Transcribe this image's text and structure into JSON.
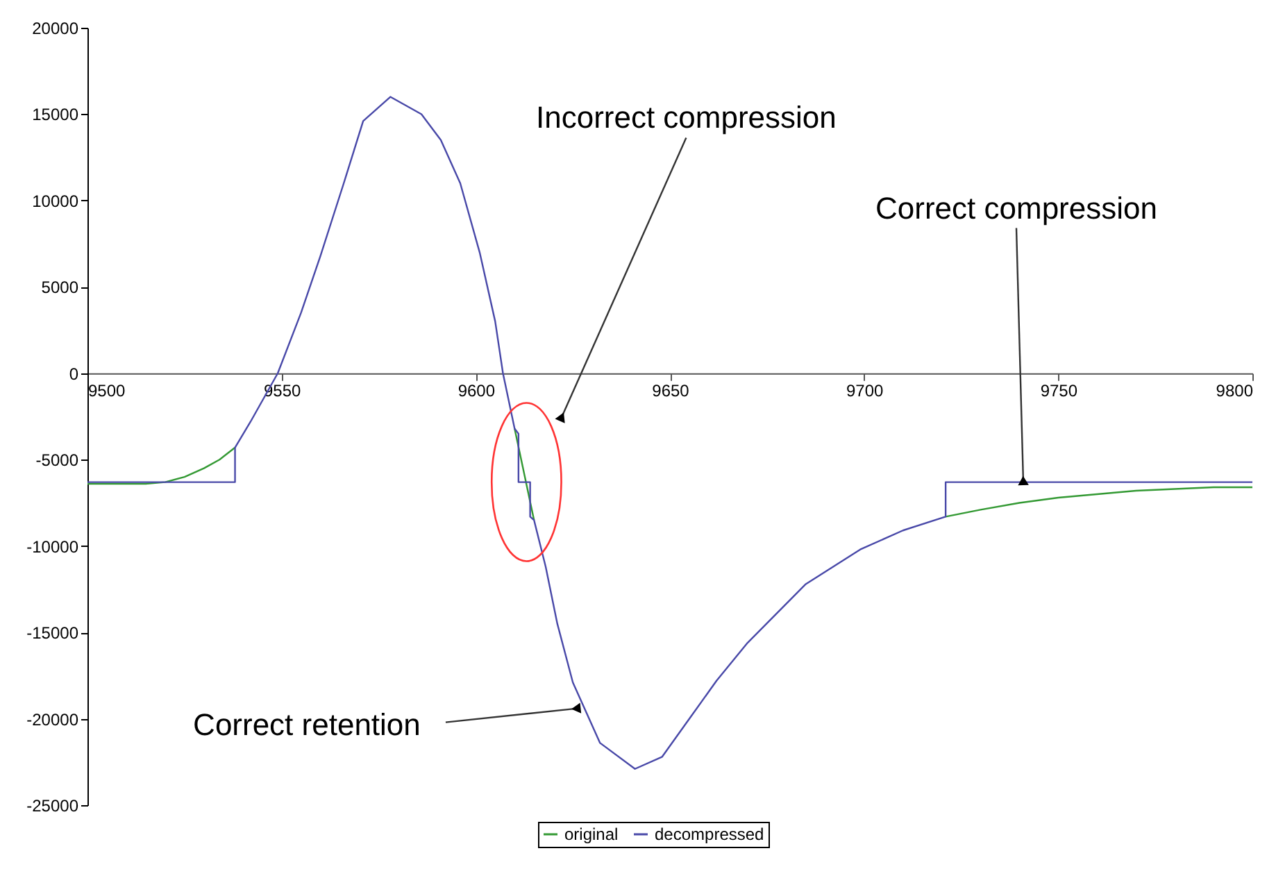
{
  "chart_data": {
    "type": "line",
    "xlim": [
      9500,
      9800
    ],
    "xticks": [
      9500,
      9550,
      9600,
      9650,
      9700,
      9750,
      9800
    ],
    "ylim": [
      -25000,
      20000
    ],
    "yticks": [
      -25000,
      -20000,
      -15000,
      -10000,
      -5000,
      0,
      5000,
      10000,
      15000,
      20000
    ],
    "grid": false,
    "legend": "bottom",
    "line_style": "solid",
    "marker": "none",
    "series": [
      {
        "name": "original",
        "color": "#339933",
        "x": [
          9500,
          9505,
          9510,
          9515,
          9520,
          9525,
          9530,
          9534,
          9538,
          9574,
          9610,
          9615,
          9668,
          9721,
          9730,
          9740,
          9750,
          9760,
          9770,
          9780,
          9790,
          9800
        ],
        "values": [
          -6400,
          -6400,
          -6400,
          -6400,
          -6300,
          -6000,
          -5500,
          -5000,
          -4300,
          null,
          -3200,
          -8500,
          null,
          -8300,
          -7900,
          -7500,
          -7200,
          -7000,
          -6800,
          -6700,
          -6600,
          -6600
        ]
      },
      {
        "name": "decompressed",
        "color": "#4848a8",
        "x": [
          9500,
          9538,
          9538,
          9542,
          9549,
          9555,
          9560,
          9566,
          9571,
          9578,
          9586,
          9591,
          9596,
          9601,
          9605,
          9607,
          9610,
          9611,
          9611,
          9614,
          9614,
          9615,
          9618,
          9621,
          9625,
          9632,
          9641,
          9648,
          9655,
          9662,
          9670,
          9685,
          9699,
          9710,
          9721,
          9721,
          9800
        ],
        "values": [
          -6300,
          -6300,
          -4300,
          -2800,
          0,
          3500,
          6800,
          11000,
          14600,
          16000,
          15000,
          13500,
          11000,
          7000,
          3000,
          0,
          -3200,
          -3500,
          -6300,
          -6300,
          -8300,
          -8500,
          -11200,
          -14500,
          -17900,
          -21400,
          -22900,
          -22200,
          -20000,
          -17800,
          -15600,
          -12200,
          -10200,
          -9100,
          -8300,
          -6300,
          -6300
        ]
      }
    ],
    "annotations": [
      {
        "text": "Incorrect compression",
        "x": 9622,
        "y": -2600
      },
      {
        "text": "Correct compression",
        "x": 9741,
        "y": -6300
      },
      {
        "text": "Correct retention",
        "x": 9628,
        "y": -19400
      }
    ]
  }
}
